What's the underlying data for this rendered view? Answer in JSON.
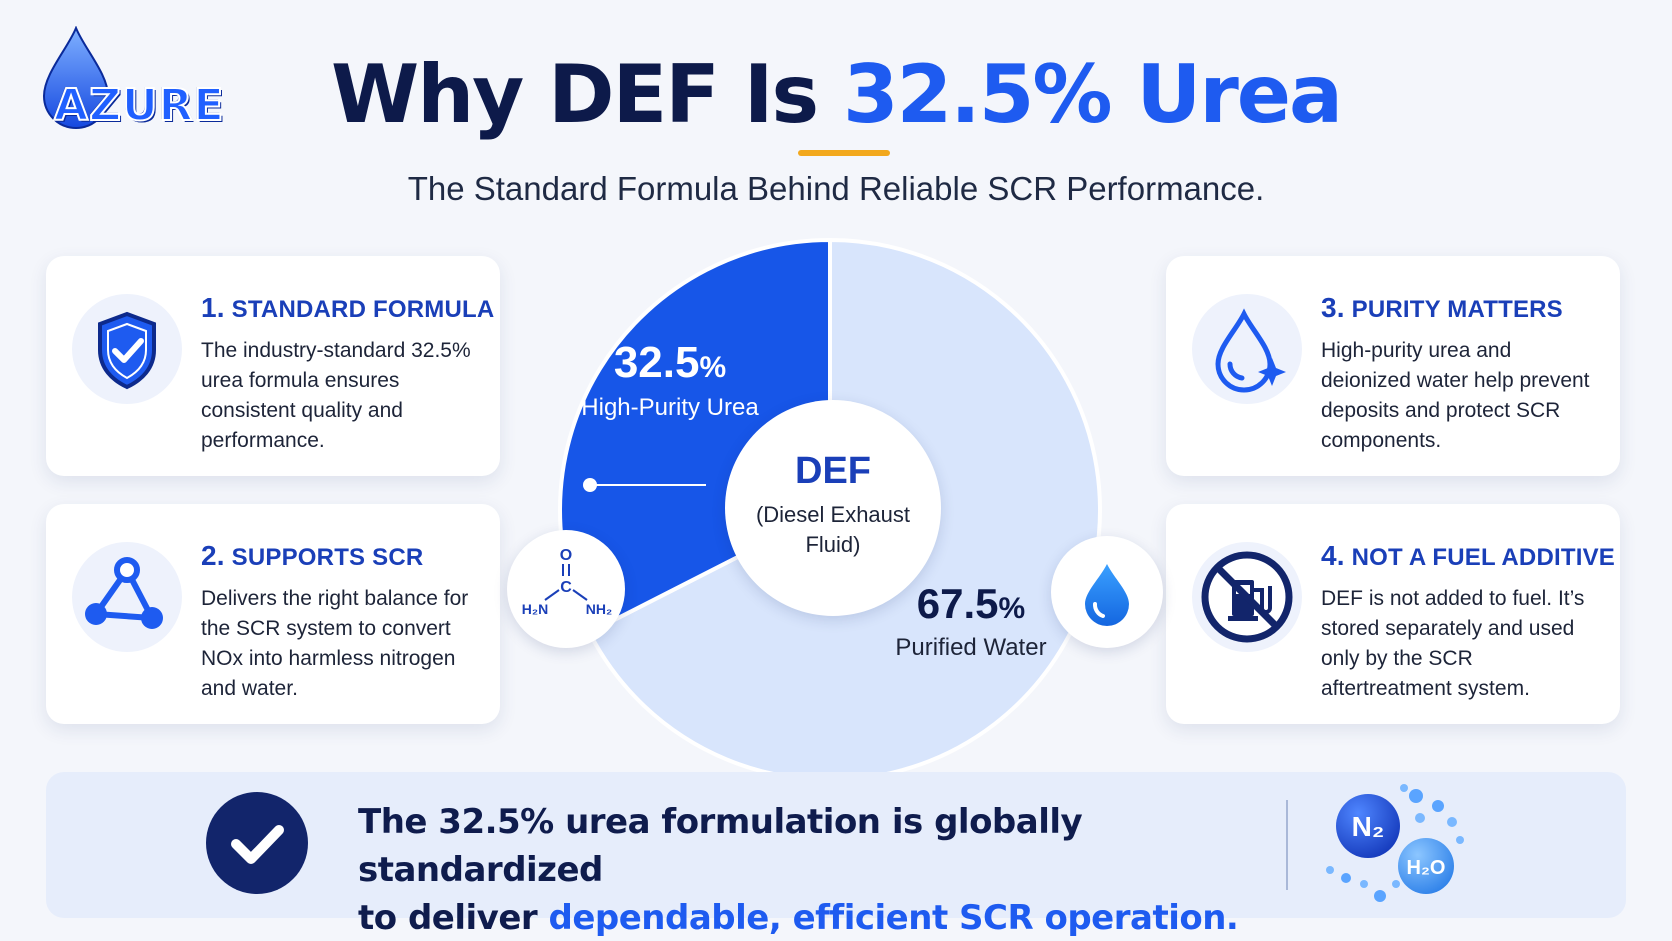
{
  "logo": {
    "letter": "A",
    "rest": "ZURE"
  },
  "header": {
    "title_prefix": "Why DEF Is ",
    "title_highlight": "32.5% Urea",
    "subtitle": "The Standard Formula Behind Reliable SCR Performance."
  },
  "colors": {
    "urea_slice": "#1756e8",
    "water_slice": "#d8e5fc",
    "accent": "#1e5bf0",
    "navy": "#0d1a4a",
    "title_rule": "#f2a81d"
  },
  "cards": [
    {
      "num": "1.",
      "title": "STANDARD FORMULA",
      "body": "The industry-standard 32.5% urea formula ensures consistent quality and performance.",
      "icon": "shield-check-icon"
    },
    {
      "num": "2.",
      "title": "SUPPORTS SCR",
      "body": "Delivers the right balance for the SCR system to convert NOx into harmless nitrogen and water.",
      "icon": "molecule-nodes-icon"
    },
    {
      "num": "3.",
      "title": "PURITY MATTERS",
      "body": "High-purity urea and deionized water help prevent deposits and protect SCR components.",
      "icon": "droplet-sparkle-icon"
    },
    {
      "num": "4.",
      "title": "NOT A FUEL ADDITIVE",
      "body": "DEF is not added to fuel. It’s stored separately and used only by the SCR aftertreatment system.",
      "icon": "no-fuel-pump-icon"
    }
  ],
  "center": {
    "title": "DEF",
    "subtitle": "(Diesel Exhaust Fluid)"
  },
  "chart_data": {
    "type": "pie",
    "slices": [
      {
        "label": "High-Purity Urea",
        "value": 32.5,
        "display": "32.5",
        "unit": "%",
        "color": "#1756e8"
      },
      {
        "label": "Purified Water",
        "value": 67.5,
        "display": "67.5",
        "unit": "%",
        "color": "#d8e5fc"
      }
    ],
    "start": "12 o'clock",
    "direction": "counter-clockwise for urea"
  },
  "urea_formula": {
    "o": "O",
    "c": "C",
    "left": "H₂N",
    "right": "NH₂"
  },
  "banner": {
    "line1": "The 32.5% urea formulation is globally standardized",
    "line2_prefix": "to deliver ",
    "line2_highlight": "dependable, efficient SCR operation."
  },
  "molecules": {
    "n2": "N₂",
    "h2o": "H₂O"
  }
}
